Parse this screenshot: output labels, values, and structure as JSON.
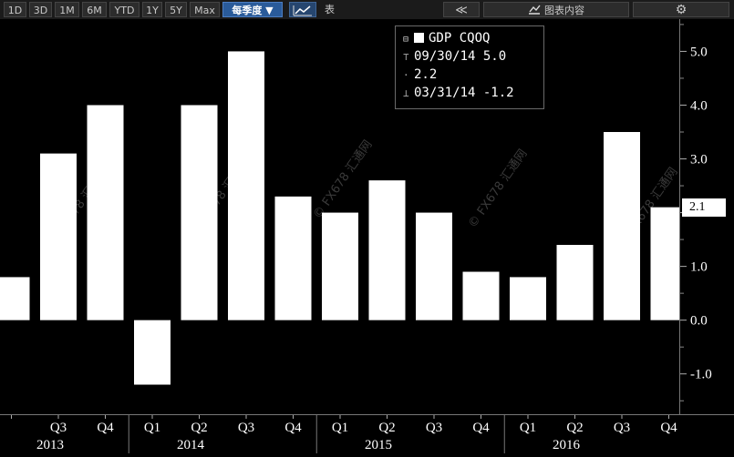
{
  "toolbar": {
    "ranges": [
      "1D",
      "3D",
      "1M",
      "6M",
      "YTD",
      "1Y",
      "5Y",
      "Max"
    ],
    "frequency": "每季度 ▼",
    "table_label": "表",
    "collapse_label": "≪",
    "chart_content_label": "图表内容",
    "line_icon": "line-chart-icon",
    "settings_icon": "gear-icon"
  },
  "legend": {
    "series": "GDP CQOQ",
    "high": "09/30/14 5.0",
    "mid": "2.2",
    "low": "03/31/14 -1.2"
  },
  "last_value": "2.1",
  "watermark": "© FX678 汇通网",
  "chart_data": {
    "type": "bar",
    "title": "",
    "series": [
      {
        "name": "GDP CQOQ",
        "values": [
          0.8,
          3.1,
          4.0,
          -1.2,
          4.0,
          5.0,
          2.3,
          2.0,
          2.6,
          2.0,
          0.9,
          0.8,
          1.4,
          3.5,
          2.1
        ]
      }
    ],
    "quarters": [
      "",
      "Q3",
      "Q4",
      "Q1",
      "Q2",
      "Q3",
      "Q4",
      "Q1",
      "Q2",
      "Q3",
      "Q4",
      "Q1",
      "Q2",
      "Q3",
      "Q4"
    ],
    "years": [
      "2013",
      "2014",
      "2015",
      "2016"
    ],
    "y_ticks": [
      5.0,
      4.0,
      3.0,
      2.0,
      1.0,
      0.0,
      -1.0
    ],
    "y_tick_labels": [
      "5.0",
      "4.0",
      "3.0",
      "",
      "1.0",
      "0.0",
      "-1.0"
    ],
    "ylim": [
      -1.75,
      5.6
    ],
    "colors": {
      "bar": "#ffffff",
      "background": "#000000",
      "axis": "#777777"
    }
  }
}
